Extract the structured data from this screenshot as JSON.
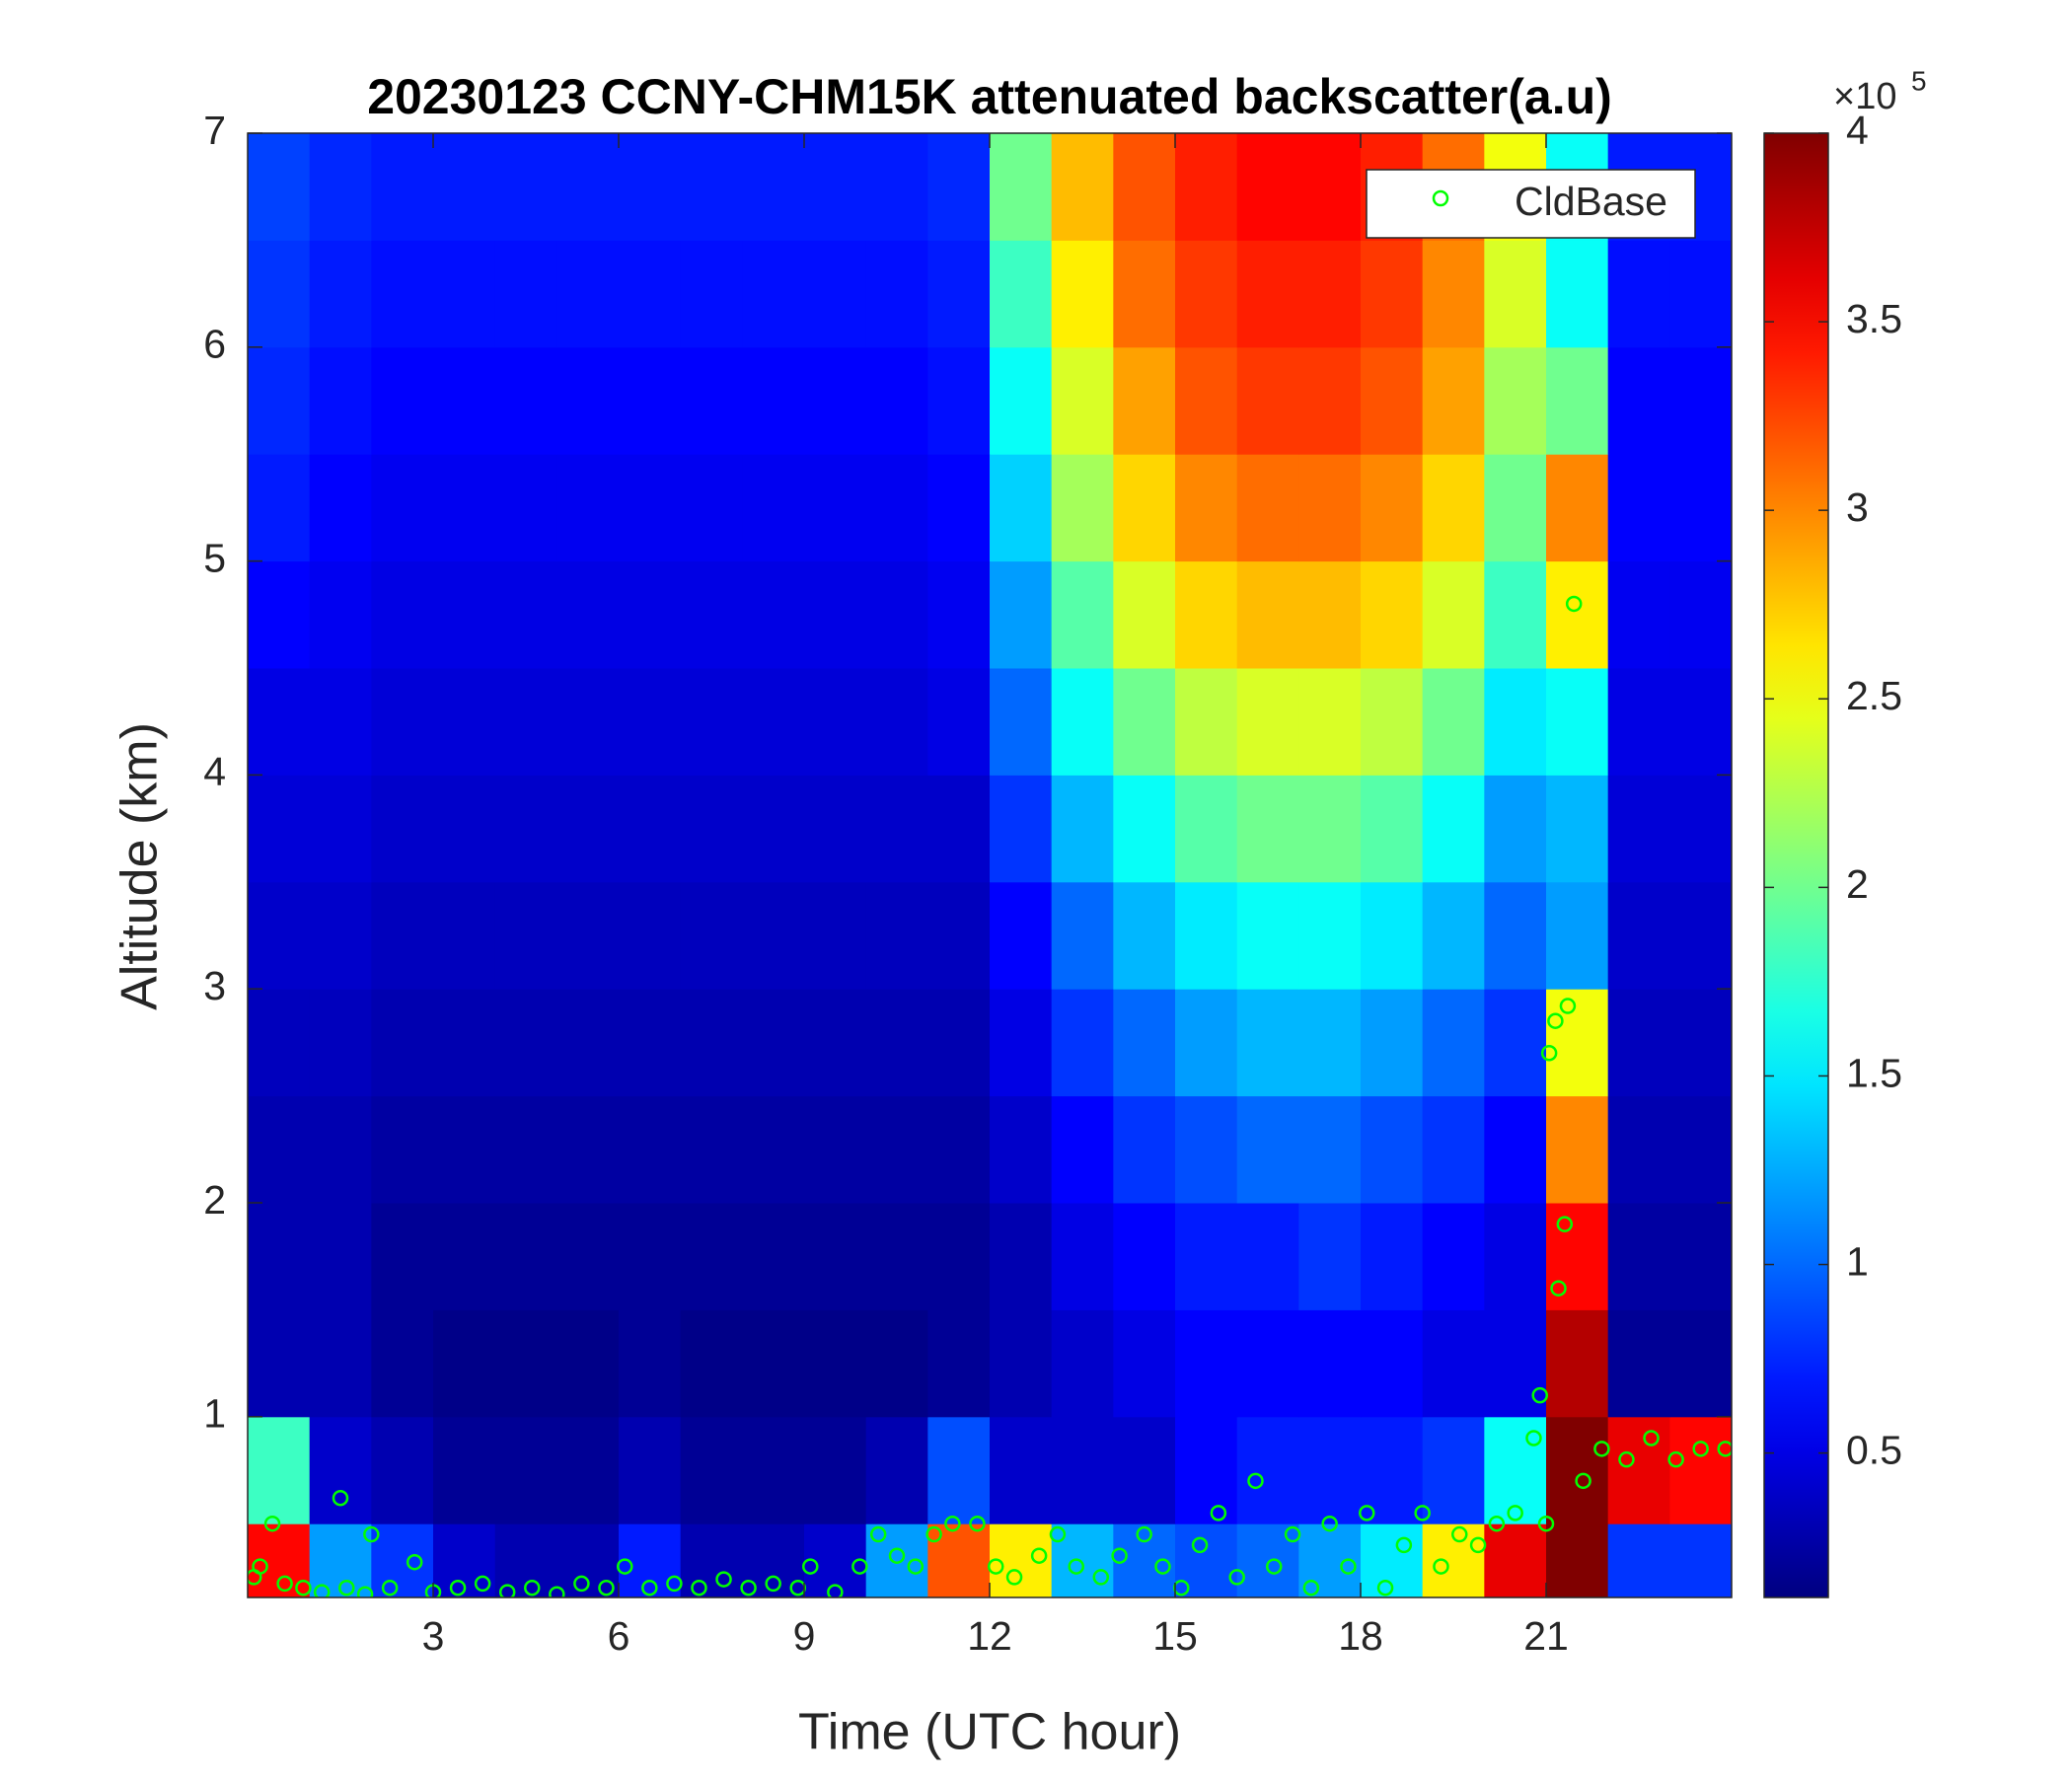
{
  "chart_data": {
    "type": "heatmap",
    "title": "20230123 CCNY-CHM15K attenuated backscatter(a.u)",
    "x_label": "Time (UTC hour)",
    "y_label": "Altitude (km)",
    "xlim": [
      0,
      24
    ],
    "xticks": [
      3,
      6,
      9,
      12,
      15,
      18,
      21
    ],
    "ylim": [
      0.155,
      7
    ],
    "yticks": [
      1,
      2,
      3,
      4,
      5,
      6,
      7
    ],
    "colormap": "jet",
    "clim": [
      0.117,
      4
    ],
    "cticks": [
      0.5,
      1,
      1.5,
      2,
      2.5,
      3,
      3.5,
      4
    ],
    "colorbar_multiplier": {
      "base": "×10",
      "exponent": "5"
    },
    "legend": "northeast",
    "x_edges": [
      0,
      1,
      2,
      3,
      4,
      5,
      6,
      7,
      8,
      9,
      10,
      11,
      12,
      13,
      14,
      15,
      16,
      17,
      18,
      19,
      20,
      21,
      22,
      23,
      24
    ],
    "y_edges": [
      0.155,
      0.5,
      1,
      1.5,
      2,
      2.5,
      3,
      3.5,
      4,
      4.5,
      5,
      5.5,
      6,
      6.5,
      7
    ],
    "z": [
      [
        3.5,
        1.2,
        0.8,
        0.4,
        0.3,
        0.3,
        0.7,
        0.3,
        0.3,
        0.4,
        1.2,
        3.2,
        2.6,
        1.3,
        1.0,
        0.9,
        1.0,
        1.2,
        1.5,
        2.6,
        3.6,
        4.0,
        0.8,
        0.8
      ],
      [
        1.8,
        0.4,
        0.3,
        0.2,
        0.2,
        0.2,
        0.3,
        0.2,
        0.2,
        0.2,
        0.3,
        0.9,
        0.4,
        0.4,
        0.4,
        0.6,
        0.7,
        0.7,
        0.7,
        0.8,
        1.6,
        4.0,
        3.6,
        3.5
      ],
      [
        0.3,
        0.3,
        0.2,
        0.15,
        0.15,
        0.15,
        0.2,
        0.15,
        0.15,
        0.15,
        0.15,
        0.2,
        0.3,
        0.4,
        0.5,
        0.6,
        0.6,
        0.6,
        0.6,
        0.5,
        0.5,
        3.8,
        0.2,
        0.2
      ],
      [
        0.3,
        0.3,
        0.2,
        0.2,
        0.2,
        0.2,
        0.2,
        0.2,
        0.2,
        0.2,
        0.2,
        0.2,
        0.3,
        0.5,
        0.6,
        0.7,
        0.7,
        0.8,
        0.7,
        0.6,
        0.5,
        3.5,
        0.25,
        0.25
      ],
      [
        0.3,
        0.3,
        0.25,
        0.25,
        0.25,
        0.25,
        0.25,
        0.25,
        0.25,
        0.25,
        0.25,
        0.25,
        0.4,
        0.6,
        0.8,
        0.9,
        1.0,
        1.0,
        0.9,
        0.8,
        0.6,
        3.0,
        0.3,
        0.3
      ],
      [
        0.35,
        0.35,
        0.3,
        0.3,
        0.3,
        0.3,
        0.3,
        0.3,
        0.3,
        0.3,
        0.3,
        0.3,
        0.5,
        0.8,
        1.0,
        1.2,
        1.3,
        1.3,
        1.2,
        1.0,
        0.8,
        2.5,
        0.35,
        0.35
      ],
      [
        0.4,
        0.4,
        0.35,
        0.35,
        0.35,
        0.35,
        0.35,
        0.35,
        0.35,
        0.35,
        0.35,
        0.35,
        0.6,
        1.0,
        1.3,
        1.5,
        1.6,
        1.6,
        1.5,
        1.3,
        1.0,
        1.2,
        0.4,
        0.4
      ],
      [
        0.45,
        0.45,
        0.4,
        0.4,
        0.4,
        0.4,
        0.4,
        0.4,
        0.4,
        0.4,
        0.4,
        0.4,
        0.8,
        1.3,
        1.6,
        1.9,
        2.0,
        2.0,
        1.9,
        1.6,
        1.2,
        1.3,
        0.45,
        0.45
      ],
      [
        0.5,
        0.5,
        0.45,
        0.45,
        0.45,
        0.45,
        0.45,
        0.45,
        0.45,
        0.45,
        0.45,
        0.5,
        1.0,
        1.6,
        2.0,
        2.3,
        2.4,
        2.4,
        2.3,
        2.0,
        1.5,
        1.6,
        0.5,
        0.5
      ],
      [
        0.6,
        0.55,
        0.5,
        0.5,
        0.5,
        0.5,
        0.5,
        0.5,
        0.5,
        0.5,
        0.5,
        0.55,
        1.2,
        1.9,
        2.4,
        2.7,
        2.8,
        2.8,
        2.7,
        2.4,
        1.8,
        2.6,
        0.55,
        0.55
      ],
      [
        0.7,
        0.6,
        0.55,
        0.55,
        0.55,
        0.55,
        0.55,
        0.55,
        0.55,
        0.55,
        0.55,
        0.6,
        1.4,
        2.2,
        2.7,
        3.0,
        3.1,
        3.1,
        3.0,
        2.7,
        2.0,
        3.0,
        0.6,
        0.6
      ],
      [
        0.75,
        0.65,
        0.6,
        0.6,
        0.6,
        0.6,
        0.6,
        0.6,
        0.6,
        0.6,
        0.6,
        0.65,
        1.6,
        2.4,
        2.9,
        3.2,
        3.3,
        3.3,
        3.2,
        2.9,
        2.2,
        2.0,
        0.6,
        0.6
      ],
      [
        0.8,
        0.7,
        0.65,
        0.65,
        0.65,
        0.65,
        0.65,
        0.65,
        0.65,
        0.65,
        0.65,
        0.7,
        1.8,
        2.6,
        3.1,
        3.3,
        3.4,
        3.4,
        3.3,
        3.0,
        2.4,
        1.6,
        0.65,
        0.65
      ],
      [
        0.85,
        0.75,
        0.7,
        0.7,
        0.7,
        0.7,
        0.7,
        0.7,
        0.7,
        0.7,
        0.7,
        0.75,
        2.0,
        2.8,
        3.2,
        3.4,
        3.5,
        3.5,
        3.4,
        3.1,
        2.5,
        1.6,
        0.7,
        0.7
      ]
    ],
    "series": [
      {
        "name": "CldBase",
        "type": "scatter",
        "color": "#00ff00",
        "x": [
          0.1,
          0.2,
          0.4,
          0.6,
          0.9,
          1.2,
          1.5,
          1.6,
          1.9,
          2.0,
          2.3,
          2.7,
          3.0,
          3.4,
          3.8,
          4.2,
          4.6,
          5.0,
          5.4,
          5.8,
          6.1,
          6.5,
          6.9,
          7.3,
          7.7,
          8.1,
          8.5,
          8.9,
          9.1,
          9.5,
          9.9,
          10.2,
          10.5,
          10.8,
          11.1,
          11.4,
          11.8,
          12.1,
          12.4,
          12.8,
          13.1,
          13.4,
          13.8,
          14.1,
          14.5,
          14.8,
          15.1,
          15.4,
          15.7,
          16.0,
          16.3,
          16.6,
          16.9,
          17.2,
          17.5,
          17.8,
          18.1,
          18.4,
          18.7,
          19.0,
          19.3,
          19.6,
          19.9,
          20.2,
          20.5,
          20.8,
          20.9,
          21.0,
          21.05,
          21.15,
          21.2,
          21.3,
          21.35,
          21.45,
          21.6,
          21.9,
          22.3,
          22.7,
          23.1,
          23.5,
          23.9
        ],
        "y": [
          0.25,
          0.3,
          0.5,
          0.22,
          0.2,
          0.18,
          0.62,
          0.2,
          0.17,
          0.45,
          0.2,
          0.32,
          0.18,
          0.2,
          0.22,
          0.18,
          0.2,
          0.17,
          0.22,
          0.2,
          0.3,
          0.2,
          0.22,
          0.2,
          0.24,
          0.2,
          0.22,
          0.2,
          0.3,
          0.18,
          0.3,
          0.45,
          0.35,
          0.3,
          0.45,
          0.5,
          0.5,
          0.3,
          0.25,
          0.35,
          0.45,
          0.3,
          0.25,
          0.35,
          0.45,
          0.3,
          0.2,
          0.4,
          0.55,
          0.25,
          0.7,
          0.3,
          0.45,
          0.2,
          0.5,
          0.3,
          0.55,
          0.2,
          0.4,
          0.55,
          0.3,
          0.45,
          0.4,
          0.5,
          0.55,
          0.9,
          1.1,
          0.5,
          2.7,
          2.85,
          1.6,
          1.9,
          2.92,
          4.8,
          0.7,
          0.85,
          0.8,
          0.9,
          0.8,
          0.85,
          0.85
        ]
      }
    ]
  }
}
